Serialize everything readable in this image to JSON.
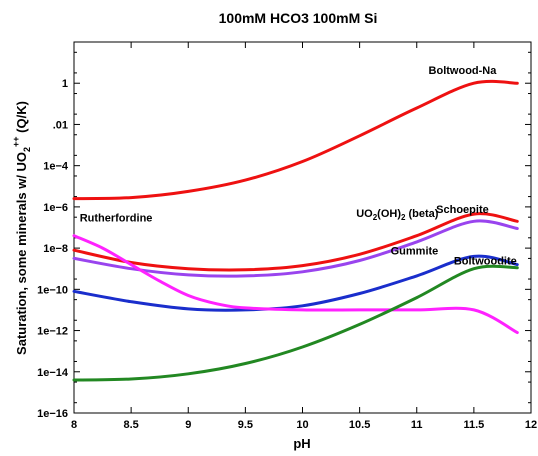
{
  "chart_data": {
    "type": "line",
    "title": "100mM HCO3 100mM Si",
    "xlabel": "pH",
    "ylabel": "Saturation, some minerals w/ UO2++ (Q/K)",
    "ylabel_parts": {
      "prefix": "Saturation, some minerals w/ UO",
      "sub": "2",
      "sup": "++",
      "suffix": " (Q/K)"
    },
    "xlim": [
      8,
      12
    ],
    "ylim_log10": [
      -16,
      2
    ],
    "yscale": "log",
    "grid": false,
    "x_ticks": [
      8,
      8.5,
      9,
      9.5,
      10,
      10.5,
      11,
      11.5,
      12
    ],
    "x_tick_labels": [
      "8",
      "8.5",
      "9",
      "9.5",
      "10",
      "10.5",
      "11",
      "11.5",
      "12"
    ],
    "y_ticks_log10": [
      -16,
      -14,
      -12,
      -10,
      -8,
      -6,
      -4,
      -2,
      0
    ],
    "y_tick_labels": [
      "1e−16",
      "1e−14",
      "1e−12",
      "1e−10",
      "1e−8",
      "1e−6",
      "1e−4",
      ".01",
      "1"
    ],
    "series": [
      {
        "name": "Boltwood-Na",
        "color": "#ee1111",
        "x": [
          8.0,
          8.5,
          9.0,
          9.5,
          10.0,
          10.5,
          11.0,
          11.5,
          11.88
        ],
        "log10_y": [
          -5.6,
          -5.55,
          -5.25,
          -4.7,
          -3.8,
          -2.55,
          -1.2,
          0.0,
          0.0
        ]
      },
      {
        "name": "UO2(OH)2 (beta)",
        "label_parts": {
          "pre": "UO",
          "sub": "2",
          "mid": "(OH)",
          "sub2": "2",
          "post": " (beta)"
        },
        "color": "#ee1111",
        "x": [
          8.0,
          8.5,
          9.0,
          9.5,
          10.0,
          10.5,
          11.0,
          11.5,
          11.88
        ],
        "log10_y": [
          -8.1,
          -8.7,
          -9.0,
          -9.05,
          -8.85,
          -8.3,
          -7.4,
          -6.35,
          -6.7
        ]
      },
      {
        "name": "Schoepite",
        "color": "#9944ee",
        "x": [
          8.0,
          8.5,
          9.0,
          9.5,
          10.0,
          10.5,
          11.0,
          11.5,
          11.88
        ],
        "log10_y": [
          -8.5,
          -9.0,
          -9.3,
          -9.35,
          -9.15,
          -8.6,
          -7.7,
          -6.7,
          -7.05
        ]
      },
      {
        "name": "Gummite",
        "color": "#1a2ecc",
        "x": [
          8.0,
          8.5,
          9.0,
          9.5,
          10.0,
          10.5,
          11.0,
          11.5,
          11.88
        ],
        "log10_y": [
          -10.1,
          -10.6,
          -10.95,
          -11.0,
          -10.8,
          -10.2,
          -9.35,
          -8.4,
          -8.8
        ]
      },
      {
        "name": "Rutherfordine",
        "color": "#ff22ff",
        "x": [
          8.0,
          8.25,
          8.5,
          8.75,
          9.0,
          9.25,
          9.5,
          10.0,
          10.5,
          11.0,
          11.5,
          11.88
        ],
        "log10_y": [
          -7.4,
          -8.0,
          -8.8,
          -9.6,
          -10.3,
          -10.7,
          -10.9,
          -11.0,
          -11.0,
          -11.0,
          -11.0,
          -12.1
        ]
      },
      {
        "name": "Boltwoodite",
        "color": "#228822",
        "x": [
          8.0,
          8.5,
          9.0,
          9.5,
          10.0,
          10.5,
          11.0,
          11.5,
          11.88
        ],
        "log10_y": [
          -14.4,
          -14.35,
          -14.1,
          -13.6,
          -12.8,
          -11.7,
          -10.4,
          -9.0,
          -8.95
        ]
      }
    ],
    "annotations": [
      {
        "text": "Boltwood-Na",
        "x": 11.4,
        "log10_y": 0.45,
        "anchor": "middle"
      },
      {
        "text": "Rutherfordine",
        "x": 8.05,
        "log10_y": -6.7,
        "anchor": "start"
      },
      {
        "text": "Schoepite",
        "x": 11.4,
        "log10_y": -6.3,
        "anchor": "middle"
      },
      {
        "text": "Gummite",
        "x": 10.98,
        "log10_y": -8.3,
        "anchor": "middle"
      },
      {
        "text": "Boltwoodite",
        "x": 11.6,
        "log10_y": -8.8,
        "anchor": "middle"
      }
    ]
  }
}
